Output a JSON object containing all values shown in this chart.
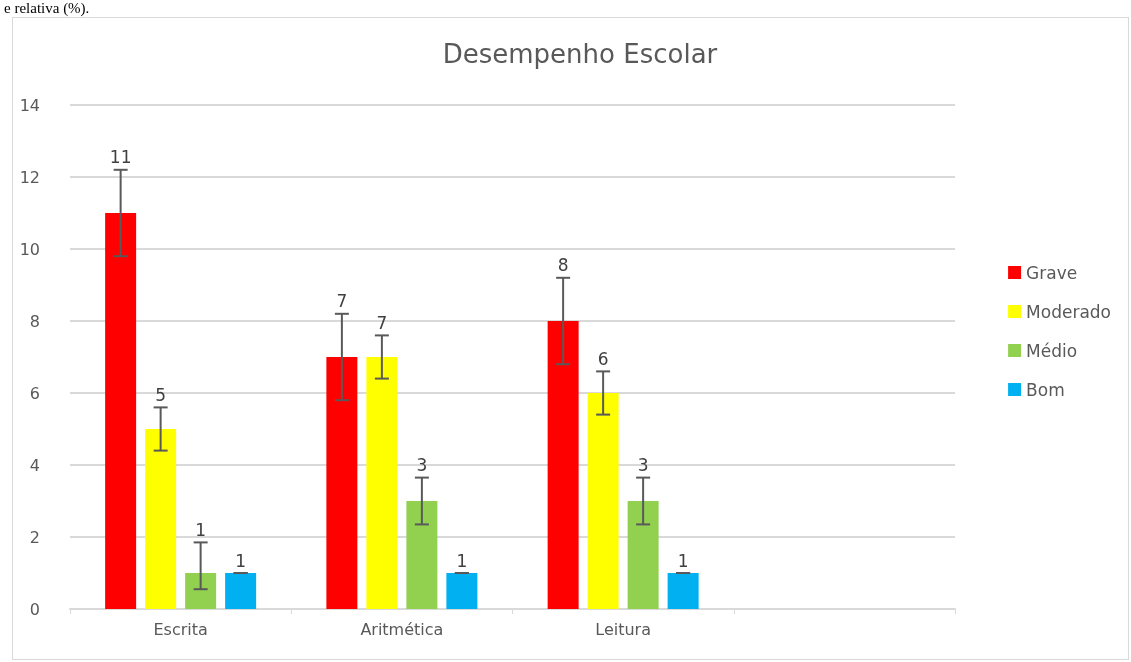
{
  "chart_data": {
    "type": "bar",
    "title": "Desempenho Escolar",
    "annotations": [
      "e relativa (%)."
    ],
    "categories": [
      "Escrita",
      "Aritmética",
      "Leitura",
      null
    ],
    "series": [
      {
        "name": "Grave",
        "color": "#ff0000",
        "values": [
          11,
          7,
          8,
          null
        ],
        "errors": [
          1.2,
          1.2,
          1.2,
          null
        ]
      },
      {
        "name": "Moderado",
        "color": "#ffff00",
        "values": [
          5,
          7,
          6,
          null
        ],
        "errors": [
          0.6,
          0.6,
          0.6,
          null
        ]
      },
      {
        "name": "Médio",
        "color": "#92d050",
        "values": [
          1,
          3,
          3,
          null
        ],
        "errors": [
          [
            0.55,
            1.85
          ],
          0.65,
          0.65,
          null
        ]
      },
      {
        "name": "Bom",
        "color": "#00b0f0",
        "values": [
          1,
          1,
          1,
          null
        ],
        "errors": [
          0,
          0,
          0,
          null
        ]
      }
    ],
    "ylim": [
      0,
      14
    ],
    "yticks": [
      0,
      2,
      4,
      6,
      8,
      10,
      12,
      14
    ],
    "grid": "y",
    "legend": "right",
    "data_labels": true
  }
}
